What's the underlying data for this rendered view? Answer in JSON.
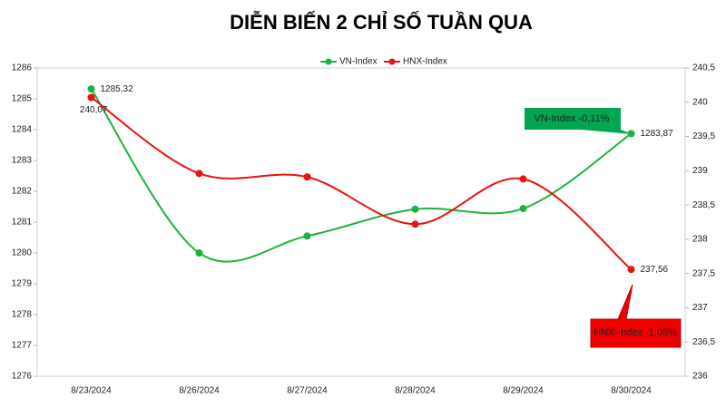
{
  "chart_data": {
    "type": "line",
    "title": "DIỄN BIẾN 2 CHỈ SỐ TUẦN QUA",
    "categories": [
      "8/23/2024",
      "8/26/2024",
      "8/27/2024",
      "8/28/2024",
      "8/29/2024",
      "8/30/2024"
    ],
    "series": [
      {
        "name": "VN-Index",
        "color": "#1db23f",
        "values": [
          1285.32,
          1280.0,
          1280.55,
          1281.42,
          1281.44,
          1283.87
        ],
        "value_labels": [
          "1285,32",
          null,
          null,
          null,
          null,
          "1283,87"
        ]
      },
      {
        "name": "HNX-Index",
        "color": "#e8140d",
        "axis": "y2",
        "values": [
          240.07,
          238.96,
          238.91,
          238.22,
          238.88,
          237.56
        ],
        "value_labels": [
          "240,07",
          null,
          null,
          null,
          null,
          "237,56"
        ]
      }
    ],
    "ylim": [
      1276,
      1286
    ],
    "yticks": [
      1276,
      1277,
      1278,
      1279,
      1280,
      1281,
      1282,
      1283,
      1284,
      1285,
      1286
    ],
    "y2lim": [
      236,
      240.5
    ],
    "y2ticks": [
      236,
      {
        "value": 236.5,
        "label": "236,5"
      },
      237,
      {
        "value": 237.5,
        "label": "237,5"
      },
      238,
      {
        "value": 238.5,
        "label": "238,5"
      },
      239,
      {
        "value": 239.5,
        "label": "239,5"
      },
      240,
      {
        "value": 240.5,
        "label": "240,5"
      }
    ],
    "legend": "top",
    "grid": false,
    "annotations": [
      {
        "text": "VN-Index -0,11%",
        "color": "#00a650"
      },
      {
        "text": "HNX-Index -1,05%",
        "color": "#ee0000"
      }
    ]
  }
}
